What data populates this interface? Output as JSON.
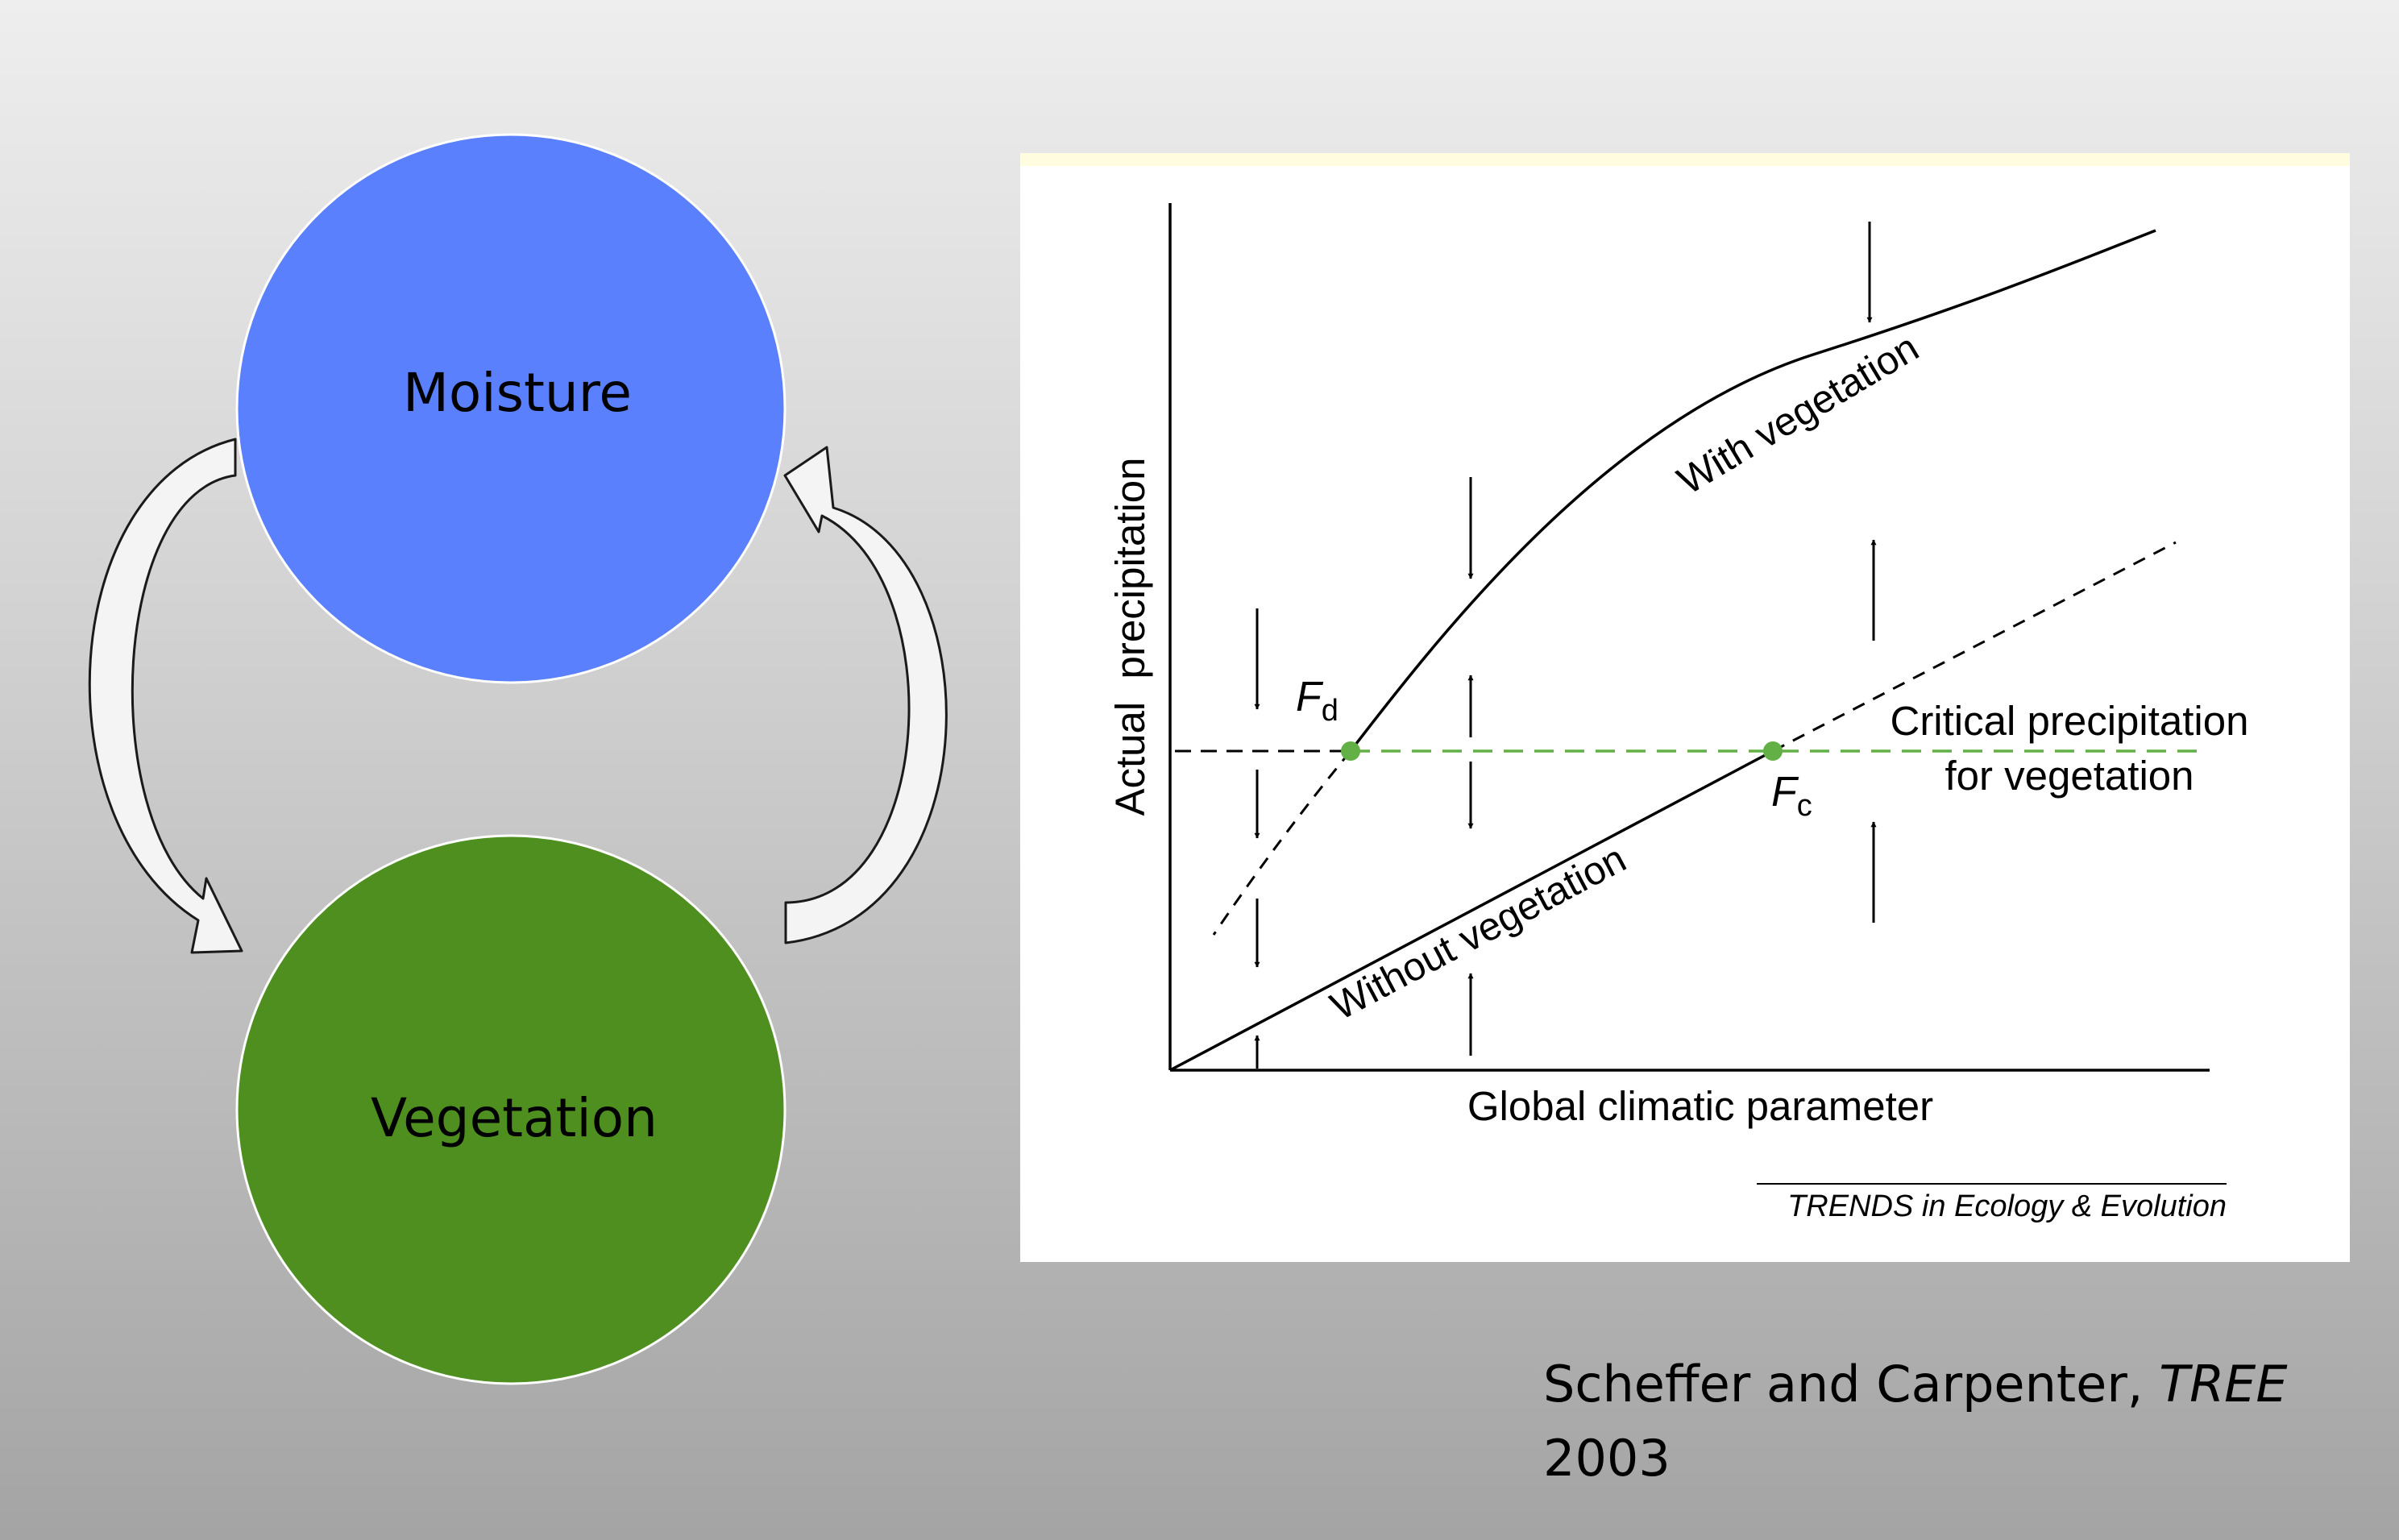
{
  "cycle": {
    "top_label": "Moisture",
    "bottom_label": "Vegetation",
    "top_color": "#5b80fe",
    "bottom_color": "#4e8f20"
  },
  "figure": {
    "y_axis_label": "Actual  precipitation",
    "x_axis_label": "Global climatic parameter",
    "curve_with": "With vegetation",
    "curve_without": "Without vegetation",
    "threshold_line1": "Critical precipitation",
    "threshold_line2": "for vegetation",
    "point_d_main": "F",
    "point_d_sub": "d",
    "point_c_main": "F",
    "point_c_sub": "c",
    "source": "TRENDS in Ecology & Evolution",
    "point_color": "#62b046",
    "threshold_color": "#62b046"
  },
  "citation": {
    "authors": "Scheffer and Carpenter, ",
    "journal": "TREE",
    "year": "2003"
  }
}
